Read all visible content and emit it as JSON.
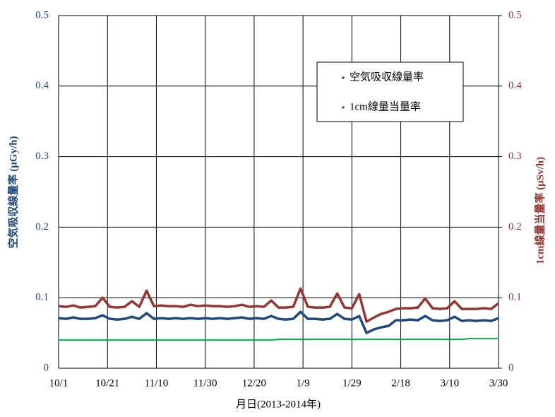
{
  "chart_data": {
    "type": "line",
    "x_label": "月日(2013-2014年)",
    "y_label": "空気吸収線量率 (μGy/h)",
    "y2_label": "1cm線量当量率 (μSv/h)",
    "xlim": [
      0,
      180
    ],
    "xticks": [
      {
        "value": 0,
        "label": "10/1"
      },
      {
        "value": 20,
        "label": "10/21"
      },
      {
        "value": 40,
        "label": "11/10"
      },
      {
        "value": 60,
        "label": "11/30"
      },
      {
        "value": 80,
        "label": "12/20"
      },
      {
        "value": 100,
        "label": "1/9"
      },
      {
        "value": 120,
        "label": "1/29"
      },
      {
        "value": 140,
        "label": "2/18"
      },
      {
        "value": 160,
        "label": "3/10"
      },
      {
        "value": 180,
        "label": "3/30"
      }
    ],
    "ylim": [
      0,
      0.5
    ],
    "yticks": [
      0,
      0.1,
      0.2,
      0.3,
      0.4,
      0.5
    ],
    "y2lim": [
      0,
      0.5
    ],
    "y2ticks": [
      0,
      0.1,
      0.2,
      0.3,
      0.4,
      0.5
    ],
    "grid": true,
    "legend": "upper-right",
    "x": [
      0,
      3,
      6,
      9,
      12,
      15,
      18,
      21,
      24,
      27,
      30,
      33,
      36,
      39,
      42,
      45,
      48,
      51,
      54,
      57,
      60,
      63,
      66,
      69,
      72,
      75,
      78,
      81,
      84,
      87,
      90,
      93,
      96,
      99,
      102,
      105,
      108,
      111,
      114,
      117,
      120,
      123,
      126,
      129,
      132,
      135,
      138,
      141,
      144,
      147,
      150,
      153,
      156,
      159,
      162,
      165,
      168,
      171,
      174,
      177,
      180
    ],
    "series": [
      {
        "name": "空気吸収線量率",
        "color": "#1f497d",
        "values": [
          0.071,
          0.07,
          0.072,
          0.07,
          0.07,
          0.071,
          0.075,
          0.07,
          0.069,
          0.07,
          0.073,
          0.07,
          0.078,
          0.07,
          0.071,
          0.07,
          0.071,
          0.07,
          0.071,
          0.07,
          0.071,
          0.07,
          0.071,
          0.07,
          0.071,
          0.072,
          0.07,
          0.071,
          0.07,
          0.074,
          0.07,
          0.069,
          0.07,
          0.08,
          0.07,
          0.07,
          0.069,
          0.07,
          0.077,
          0.07,
          0.069,
          0.074,
          0.05,
          0.055,
          0.058,
          0.06,
          0.068,
          0.068,
          0.069,
          0.068,
          0.074,
          0.068,
          0.067,
          0.068,
          0.073,
          0.067,
          0.068,
          0.067,
          0.068,
          0.067,
          0.071
        ]
      },
      {
        "name": "1cm線量当量率",
        "color": "#943634",
        "axis": "y2",
        "values": [
          0.088,
          0.087,
          0.089,
          0.086,
          0.087,
          0.088,
          0.1,
          0.087,
          0.086,
          0.087,
          0.095,
          0.087,
          0.11,
          0.088,
          0.089,
          0.088,
          0.088,
          0.087,
          0.09,
          0.088,
          0.089,
          0.088,
          0.088,
          0.087,
          0.088,
          0.09,
          0.087,
          0.088,
          0.087,
          0.096,
          0.086,
          0.086,
          0.087,
          0.113,
          0.087,
          0.086,
          0.086,
          0.087,
          0.106,
          0.086,
          0.085,
          0.105,
          0.066,
          0.072,
          0.077,
          0.08,
          0.084,
          0.085,
          0.085,
          0.086,
          0.099,
          0.085,
          0.084,
          0.085,
          0.095,
          0.084,
          0.084,
          0.084,
          0.085,
          0.084,
          0.092
        ]
      },
      {
        "color": "#00b050",
        "values": [
          0.04,
          0.04,
          0.04,
          0.04,
          0.04,
          0.04,
          0.04,
          0.04,
          0.04,
          0.04,
          0.04,
          0.04,
          0.04,
          0.04,
          0.04,
          0.04,
          0.04,
          0.04,
          0.04,
          0.04,
          0.04,
          0.04,
          0.04,
          0.04,
          0.04,
          0.04,
          0.04,
          0.04,
          0.04,
          0.04,
          0.041,
          0.041,
          0.041,
          0.041,
          0.041,
          0.041,
          0.041,
          0.041,
          0.041,
          0.041,
          0.041,
          0.041,
          0.041,
          0.041,
          0.041,
          0.041,
          0.041,
          0.041,
          0.041,
          0.041,
          0.041,
          0.041,
          0.041,
          0.041,
          0.041,
          0.041,
          0.042,
          0.042,
          0.042,
          0.042,
          0.042
        ]
      }
    ]
  }
}
